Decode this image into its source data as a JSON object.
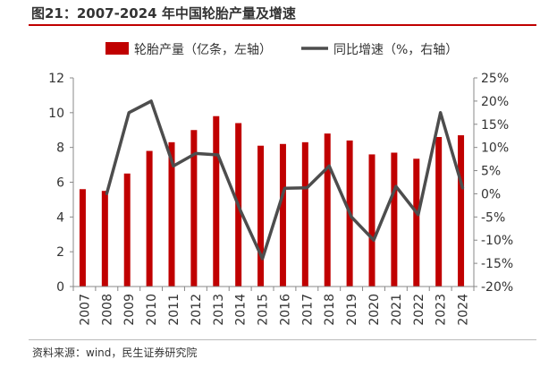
{
  "header": {
    "title": "图21：2007-2024 年中国轮胎产量及增速"
  },
  "footer": {
    "source": "资料来源：wind，民生证券研究院"
  },
  "colors": {
    "bar": "#c00000",
    "line": "#4d4d4d",
    "title_rule": "#c00000"
  },
  "chart_data": {
    "type": "bar",
    "title": "2007-2024 年中国轮胎产量及增速",
    "categories": [
      "2007",
      "2008",
      "2009",
      "2010",
      "2011",
      "2012",
      "2013",
      "2014",
      "2015",
      "2016",
      "2017",
      "2018",
      "2019",
      "2020",
      "2021",
      "2022",
      "2023",
      "2024"
    ],
    "series": [
      {
        "name": "轮胎产量（亿条，左轴）",
        "type": "bar",
        "axis": "left",
        "values": [
          5.6,
          5.5,
          6.5,
          7.8,
          8.3,
          9.0,
          9.8,
          9.4,
          8.1,
          8.2,
          8.3,
          8.8,
          8.4,
          7.6,
          7.7,
          7.35,
          8.6,
          8.7
        ]
      },
      {
        "name": "同比增速（%，右轴）",
        "type": "line",
        "axis": "right",
        "values": [
          null,
          0,
          17.5,
          20,
          6,
          8.7,
          8.4,
          -3.5,
          -14,
          1.2,
          1.3,
          6,
          -5,
          -10,
          1.6,
          -4.5,
          17.5,
          1.2
        ]
      }
    ],
    "left_axis": {
      "min": 0,
      "max": 12,
      "step": 2,
      "ticks": [
        "0",
        "2",
        "4",
        "6",
        "8",
        "10",
        "12"
      ]
    },
    "right_axis": {
      "min": -20,
      "max": 25,
      "step": 5,
      "ticks": [
        "-20%",
        "-15%",
        "-10%",
        "-5%",
        "0%",
        "5%",
        "10%",
        "15%",
        "20%",
        "25%"
      ]
    },
    "legend_position": "top"
  }
}
